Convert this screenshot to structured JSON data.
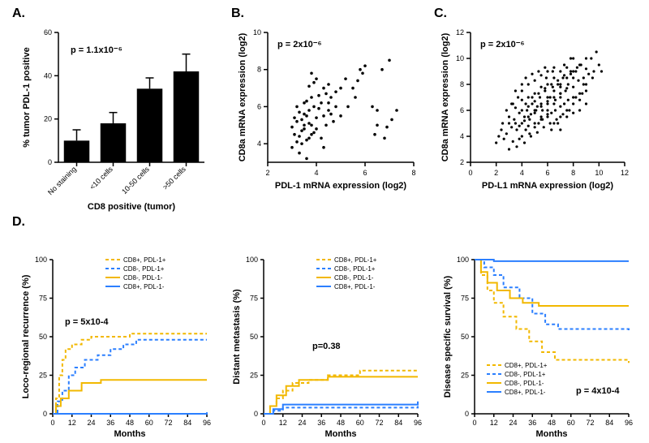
{
  "panelA": {
    "label": "A.",
    "type": "bar",
    "x_title": "CD8 positive (tumor)",
    "y_title": "% tumor PDL-1 positive",
    "p_value": "p = 1.1x10⁻⁶",
    "ylim": [
      0,
      60
    ],
    "ytick_step": 20,
    "categories": [
      "No staining",
      "<10 cells",
      "10-50 cells",
      ">50 cells"
    ],
    "values": [
      10,
      18,
      34,
      42
    ],
    "errors": [
      5,
      5,
      5,
      8
    ],
    "bar_color": "#000000",
    "bar_width": 0.7,
    "label_fontsize": 10
  },
  "panelB": {
    "label": "B.",
    "type": "scatter",
    "x_title": "PDL-1 mRNA expression (log2)",
    "y_title": "CD8a mRNA expression (log2)",
    "p_value": "p = 2x10⁻⁶",
    "xlim": [
      2,
      8
    ],
    "ylim": [
      3,
      10
    ],
    "xtick_step": 2,
    "ytick_step": 2,
    "point_color": "#000000",
    "point_radius": 1.8,
    "points": [
      [
        3.0,
        3.8
      ],
      [
        3.1,
        4.5
      ],
      [
        3.2,
        4.1
      ],
      [
        3.3,
        3.5
      ],
      [
        3.4,
        4.7
      ],
      [
        3.5,
        5.0
      ],
      [
        3.2,
        5.2
      ],
      [
        3.3,
        5.7
      ],
      [
        3.4,
        4.0
      ],
      [
        3.5,
        6.2
      ],
      [
        3.6,
        5.5
      ],
      [
        3.7,
        4.3
      ],
      [
        3.8,
        5.0
      ],
      [
        3.5,
        4.8
      ],
      [
        3.6,
        4.2
      ],
      [
        3.7,
        5.8
      ],
      [
        3.8,
        6.5
      ],
      [
        3.9,
        4.6
      ],
      [
        3.1,
        5.4
      ],
      [
        3.6,
        3.2
      ],
      [
        3.0,
        4.9
      ],
      [
        3.2,
        6.0
      ],
      [
        3.3,
        4.4
      ],
      [
        3.4,
        5.3
      ],
      [
        3.5,
        5.6
      ],
      [
        3.6,
        6.3
      ],
      [
        3.7,
        5.1
      ],
      [
        3.8,
        4.5
      ],
      [
        3.9,
        6.0
      ],
      [
        4.0,
        5.4
      ],
      [
        4.1,
        5.9
      ],
      [
        4.2,
        6.2
      ],
      [
        4.3,
        5.5
      ],
      [
        4.4,
        6.7
      ],
      [
        4.5,
        5.8
      ],
      [
        4.6,
        6.5
      ],
      [
        4.7,
        5.2
      ],
      [
        4.8,
        6.8
      ],
      [
        4.0,
        4.8
      ],
      [
        4.2,
        4.3
      ],
      [
        4.4,
        5.0
      ],
      [
        4.6,
        5.6
      ],
      [
        4.8,
        6.0
      ],
      [
        5.0,
        7.0
      ],
      [
        5.2,
        7.5
      ],
      [
        4.1,
        6.6
      ],
      [
        4.3,
        7.0
      ],
      [
        4.5,
        6.2
      ],
      [
        4.3,
        3.8
      ],
      [
        3.7,
        7.1
      ],
      [
        3.9,
        7.3
      ],
      [
        4.0,
        7.5
      ],
      [
        4.5,
        7.2
      ],
      [
        3.8,
        7.8
      ],
      [
        5.5,
        7.0
      ],
      [
        5.7,
        7.4
      ],
      [
        5.9,
        7.8
      ],
      [
        5.0,
        5.5
      ],
      [
        5.3,
        6.0
      ],
      [
        5.6,
        6.5
      ],
      [
        5.8,
        8.0
      ],
      [
        6.0,
        8.2
      ],
      [
        6.4,
        4.5
      ],
      [
        6.5,
        5.0
      ],
      [
        6.8,
        4.3
      ],
      [
        6.9,
        4.9
      ],
      [
        7.0,
        8.5
      ],
      [
        7.3,
        5.8
      ],
      [
        7.1,
        5.3
      ],
      [
        6.7,
        8.0
      ],
      [
        6.3,
        6.0
      ],
      [
        6.5,
        5.8
      ]
    ]
  },
  "panelC": {
    "label": "C.",
    "type": "scatter",
    "x_title": "PD-L1 mRNA expression (log2)",
    "y_title": "CD8a mRNA expression (log2)",
    "p_value": "p = 2x10⁻⁶",
    "xlim": [
      0,
      12
    ],
    "ylim": [
      2,
      12
    ],
    "xtick_step": 2,
    "ytick_step": 2,
    "point_color": "#000000",
    "point_radius": 1.6,
    "points": [
      [
        2.0,
        3.5
      ],
      [
        2.2,
        4.0
      ],
      [
        2.4,
        4.5
      ],
      [
        2.6,
        3.8
      ],
      [
        2.8,
        4.2
      ],
      [
        3.0,
        5.0
      ],
      [
        3.2,
        4.7
      ],
      [
        3.4,
        5.3
      ],
      [
        3.6,
        4.5
      ],
      [
        3.8,
        5.8
      ],
      [
        4.0,
        5.0
      ],
      [
        4.2,
        5.5
      ],
      [
        4.4,
        6.0
      ],
      [
        4.6,
        5.3
      ],
      [
        4.8,
        6.5
      ],
      [
        5.0,
        5.8
      ],
      [
        5.2,
        6.3
      ],
      [
        5.4,
        7.0
      ],
      [
        5.6,
        6.0
      ],
      [
        5.8,
        7.5
      ],
      [
        6.0,
        6.5
      ],
      [
        6.2,
        7.0
      ],
      [
        6.4,
        7.8
      ],
      [
        6.6,
        6.8
      ],
      [
        6.8,
        8.0
      ],
      [
        7.0,
        7.3
      ],
      [
        7.2,
        8.5
      ],
      [
        7.4,
        7.5
      ],
      [
        7.6,
        8.0
      ],
      [
        7.8,
        8.8
      ],
      [
        8.0,
        7.8
      ],
      [
        8.2,
        9.0
      ],
      [
        8.4,
        8.3
      ],
      [
        8.6,
        9.5
      ],
      [
        8.8,
        8.5
      ],
      [
        9.0,
        9.2
      ],
      [
        9.2,
        8.8
      ],
      [
        9.4,
        10.0
      ],
      [
        9.6,
        9.0
      ],
      [
        9.8,
        10.5
      ],
      [
        10.0,
        9.5
      ],
      [
        3.5,
        6.2
      ],
      [
        4.0,
        6.8
      ],
      [
        4.5,
        7.0
      ],
      [
        5.0,
        7.3
      ],
      [
        5.5,
        7.8
      ],
      [
        6.0,
        8.0
      ],
      [
        6.5,
        8.5
      ],
      [
        7.0,
        9.0
      ],
      [
        7.5,
        9.3
      ],
      [
        3.0,
        3.0
      ],
      [
        3.3,
        3.6
      ],
      [
        3.6,
        3.2
      ],
      [
        4.0,
        4.0
      ],
      [
        4.3,
        4.5
      ],
      [
        4.6,
        4.2
      ],
      [
        5.0,
        4.7
      ],
      [
        5.3,
        5.0
      ],
      [
        5.6,
        5.3
      ],
      [
        6.0,
        5.5
      ],
      [
        6.3,
        5.8
      ],
      [
        6.6,
        6.0
      ],
      [
        7.0,
        6.3
      ],
      [
        7.3,
        6.5
      ],
      [
        7.6,
        6.8
      ],
      [
        8.0,
        7.0
      ],
      [
        8.5,
        7.3
      ],
      [
        9.0,
        7.5
      ],
      [
        3.8,
        4.8
      ],
      [
        4.2,
        5.2
      ],
      [
        4.7,
        5.7
      ],
      [
        5.1,
        6.0
      ],
      [
        5.5,
        6.5
      ],
      [
        6.0,
        7.0
      ],
      [
        6.5,
        5.0
      ],
      [
        7.0,
        5.5
      ],
      [
        7.5,
        6.0
      ],
      [
        8.0,
        6.5
      ],
      [
        8.5,
        6.8
      ],
      [
        9.0,
        8.0
      ],
      [
        4.0,
        7.5
      ],
      [
        4.5,
        8.0
      ],
      [
        5.0,
        8.3
      ],
      [
        5.5,
        8.7
      ],
      [
        6.0,
        9.0
      ],
      [
        6.5,
        9.3
      ],
      [
        7.0,
        8.0
      ],
      [
        7.5,
        8.5
      ],
      [
        8.0,
        9.0
      ],
      [
        8.5,
        9.5
      ],
      [
        9.0,
        10.0
      ],
      [
        2.5,
        5.0
      ],
      [
        3.0,
        5.5
      ],
      [
        3.5,
        5.0
      ],
      [
        4.0,
        6.0
      ],
      [
        4.5,
        6.3
      ],
      [
        5.0,
        6.7
      ],
      [
        5.5,
        5.5
      ],
      [
        6.0,
        6.0
      ],
      [
        6.5,
        6.5
      ],
      [
        7.0,
        7.0
      ],
      [
        3.5,
        7.5
      ],
      [
        4.0,
        8.0
      ],
      [
        4.5,
        4.8
      ],
      [
        5.0,
        5.0
      ],
      [
        5.5,
        5.3
      ],
      [
        6.0,
        5.7
      ],
      [
        6.5,
        7.5
      ],
      [
        7.0,
        7.8
      ],
      [
        7.5,
        5.5
      ],
      [
        8.0,
        5.8
      ],
      [
        8.5,
        6.0
      ],
      [
        4.8,
        7.0
      ],
      [
        5.3,
        7.3
      ],
      [
        5.8,
        7.7
      ],
      [
        6.3,
        8.0
      ],
      [
        6.8,
        8.3
      ],
      [
        7.3,
        8.7
      ],
      [
        7.8,
        9.0
      ],
      [
        8.3,
        9.3
      ],
      [
        8.8,
        8.0
      ],
      [
        4.5,
        5.5
      ],
      [
        5.0,
        6.0
      ],
      [
        5.5,
        6.3
      ],
      [
        6.0,
        6.7
      ],
      [
        6.5,
        7.0
      ],
      [
        7.0,
        7.3
      ],
      [
        7.5,
        7.7
      ],
      [
        3.2,
        6.5
      ],
      [
        3.7,
        7.0
      ],
      [
        4.2,
        3.5
      ],
      [
        4.7,
        4.0
      ],
      [
        5.2,
        4.3
      ],
      [
        5.7,
        4.7
      ],
      [
        6.2,
        5.0
      ],
      [
        6.7,
        5.3
      ],
      [
        7.2,
        5.7
      ],
      [
        7.7,
        6.0
      ],
      [
        8.2,
        7.0
      ],
      [
        8.7,
        7.3
      ],
      [
        4.3,
        8.5
      ],
      [
        4.8,
        8.8
      ],
      [
        5.3,
        9.0
      ],
      [
        5.8,
        9.3
      ],
      [
        6.3,
        4.5
      ],
      [
        6.8,
        5.0
      ],
      [
        7.3,
        9.5
      ],
      [
        7.8,
        10.0
      ],
      [
        9.5,
        8.5
      ],
      [
        10.2,
        9.0
      ],
      [
        2.8,
        6.0
      ],
      [
        3.3,
        6.5
      ],
      [
        3.8,
        3.8
      ],
      [
        4.3,
        6.5
      ],
      [
        7.0,
        4.5
      ],
      [
        8.0,
        8.5
      ],
      [
        5.9,
        8.5
      ],
      [
        6.4,
        9.0
      ],
      [
        8.0,
        10.0
      ],
      [
        9.0,
        6.5
      ]
    ]
  },
  "panelD": {
    "label": "D.",
    "type": "survival",
    "x_title": "Months",
    "xlim": [
      0,
      96
    ],
    "xtick_step": 12,
    "ylim": [
      0,
      100
    ],
    "ytick_step": 25,
    "colors": {
      "cd8p_pdl1p": "#f2b800",
      "cd8n_pdl1p": "#2b7fff",
      "cd8n_pdl1n": "#f2b800",
      "cd8p_pdl1n": "#2b7fff"
    },
    "dash": {
      "cd8p_pdl1p": "4,3",
      "cd8n_pdl1p": "4,3",
      "cd8n_pdl1n": "none",
      "cd8p_pdl1n": "none"
    },
    "legend_labels": [
      "CD8+, PDL-1+",
      "CD8-, PDL-1+",
      "CD8-, PDL-1-",
      "CD8+, PDL-1-"
    ],
    "subpanels": [
      {
        "y_title": "Loco-regional recurrence (%)",
        "p_value": "p = 5x10-4",
        "curves": {
          "cd8p_pdl1p": [
            [
              0,
              0
            ],
            [
              2,
              10
            ],
            [
              4,
              25
            ],
            [
              6,
              35
            ],
            [
              8,
              42
            ],
            [
              12,
              45
            ],
            [
              18,
              48
            ],
            [
              24,
              50
            ],
            [
              36,
              50
            ],
            [
              48,
              52
            ],
            [
              96,
              52
            ]
          ],
          "cd8n_pdl1p": [
            [
              0,
              0
            ],
            [
              3,
              8
            ],
            [
              6,
              15
            ],
            [
              10,
              25
            ],
            [
              14,
              30
            ],
            [
              20,
              35
            ],
            [
              28,
              38
            ],
            [
              36,
              42
            ],
            [
              44,
              45
            ],
            [
              52,
              48
            ],
            [
              96,
              48
            ]
          ],
          "cd8n_pdl1n": [
            [
              0,
              0
            ],
            [
              2,
              5
            ],
            [
              5,
              10
            ],
            [
              10,
              15
            ],
            [
              18,
              20
            ],
            [
              30,
              22
            ],
            [
              96,
              22
            ]
          ],
          "cd8p_pdl1n": [
            [
              0,
              0
            ],
            [
              20,
              0
            ],
            [
              40,
              0
            ],
            [
              96,
              1
            ]
          ]
        }
      },
      {
        "y_title": "Distant metastasis (%)",
        "p_value": "p=0.38",
        "curves": {
          "cd8p_pdl1p": [
            [
              0,
              0
            ],
            [
              4,
              5
            ],
            [
              8,
              10
            ],
            [
              12,
              15
            ],
            [
              18,
              20
            ],
            [
              28,
              22
            ],
            [
              40,
              25
            ],
            [
              60,
              28
            ],
            [
              96,
              28
            ]
          ],
          "cd8n_pdl1p": [
            [
              0,
              0
            ],
            [
              6,
              2
            ],
            [
              12,
              4
            ],
            [
              96,
              5
            ]
          ],
          "cd8n_pdl1n": [
            [
              0,
              0
            ],
            [
              4,
              5
            ],
            [
              8,
              12
            ],
            [
              14,
              18
            ],
            [
              22,
              22
            ],
            [
              40,
              24
            ],
            [
              96,
              24
            ]
          ],
          "cd8p_pdl1n": [
            [
              0,
              0
            ],
            [
              6,
              3
            ],
            [
              12,
              6
            ],
            [
              96,
              8
            ]
          ]
        }
      },
      {
        "y_title": "Disease specific survival (%)",
        "p_value": "p = 4x10-4",
        "curves": {
          "cd8p_pdl1p": [
            [
              0,
              100
            ],
            [
              4,
              90
            ],
            [
              8,
              80
            ],
            [
              12,
              72
            ],
            [
              18,
              63
            ],
            [
              26,
              55
            ],
            [
              34,
              47
            ],
            [
              42,
              40
            ],
            [
              50,
              35
            ],
            [
              96,
              33
            ]
          ],
          "cd8n_pdl1p": [
            [
              0,
              100
            ],
            [
              6,
              95
            ],
            [
              12,
              90
            ],
            [
              18,
              82
            ],
            [
              28,
              75
            ],
            [
              36,
              65
            ],
            [
              44,
              58
            ],
            [
              52,
              55
            ],
            [
              96,
              53
            ]
          ],
          "cd8n_pdl1n": [
            [
              0,
              100
            ],
            [
              4,
              92
            ],
            [
              8,
              85
            ],
            [
              14,
              80
            ],
            [
              22,
              75
            ],
            [
              30,
              72
            ],
            [
              40,
              70
            ],
            [
              96,
              70
            ]
          ],
          "cd8p_pdl1n": [
            [
              0,
              100
            ],
            [
              12,
              99
            ],
            [
              96,
              99
            ]
          ]
        }
      }
    ]
  }
}
